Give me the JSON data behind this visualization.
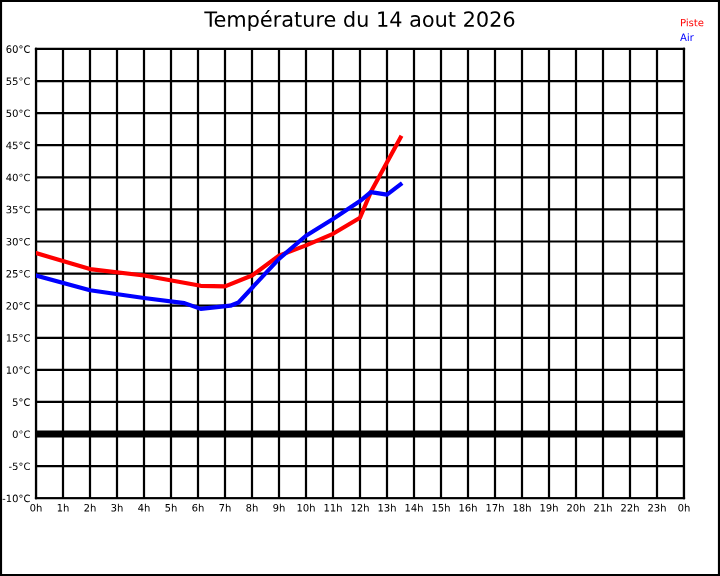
{
  "chart_data": {
    "type": "line",
    "title": "Température du 14 aout 2026",
    "legend": "top right",
    "grid": true,
    "marker": "none",
    "line_style": "solid",
    "xlim": [
      "2026-08-14T00:00",
      "2026-08-15T00:00"
    ],
    "ylim": [
      -10,
      60
    ],
    "xticks": [
      {
        "value": "2026-08-14T00:00",
        "label": "0h"
      },
      {
        "value": "2026-08-14T01:00",
        "label": "1h"
      },
      {
        "value": "2026-08-14T02:00",
        "label": "2h"
      },
      {
        "value": "2026-08-14T03:00",
        "label": "3h"
      },
      {
        "value": "2026-08-14T04:00",
        "label": "4h"
      },
      {
        "value": "2026-08-14T05:00",
        "label": "5h"
      },
      {
        "value": "2026-08-14T06:00",
        "label": "6h"
      },
      {
        "value": "2026-08-14T07:00",
        "label": "7h"
      },
      {
        "value": "2026-08-14T08:00",
        "label": "8h"
      },
      {
        "value": "2026-08-14T09:00",
        "label": "9h"
      },
      {
        "value": "2026-08-14T10:00",
        "label": "10h"
      },
      {
        "value": "2026-08-14T11:00",
        "label": "11h"
      },
      {
        "value": "2026-08-14T12:00",
        "label": "12h"
      },
      {
        "value": "2026-08-14T13:00",
        "label": "13h"
      },
      {
        "value": "2026-08-14T14:00",
        "label": "14h"
      },
      {
        "value": "2026-08-14T15:00",
        "label": "15h"
      },
      {
        "value": "2026-08-14T16:00",
        "label": "16h"
      },
      {
        "value": "2026-08-14T17:00",
        "label": "17h"
      },
      {
        "value": "2026-08-14T18:00",
        "label": "18h"
      },
      {
        "value": "2026-08-14T19:00",
        "label": "19h"
      },
      {
        "value": "2026-08-14T20:00",
        "label": "20h"
      },
      {
        "value": "2026-08-14T21:00",
        "label": "21h"
      },
      {
        "value": "2026-08-14T22:00",
        "label": "22h"
      },
      {
        "value": "2026-08-14T23:00",
        "label": "23h"
      },
      {
        "value": "2026-08-15T00:00",
        "label": "0h"
      }
    ],
    "yticks": [
      {
        "value": -10,
        "label": "-10°C"
      },
      {
        "value": -5,
        "label": "-5°C"
      },
      {
        "value": 0,
        "label": "0°C"
      },
      {
        "value": 5,
        "label": "5°C"
      },
      {
        "value": 10,
        "label": "10°C"
      },
      {
        "value": 15,
        "label": "15°C"
      },
      {
        "value": 20,
        "label": "20°C"
      },
      {
        "value": 25,
        "label": "25°C"
      },
      {
        "value": 30,
        "label": "30°C"
      },
      {
        "value": 35,
        "label": "35°C"
      },
      {
        "value": 40,
        "label": "40°C"
      },
      {
        "value": 45,
        "label": "45°C"
      },
      {
        "value": 50,
        "label": "50°C"
      },
      {
        "value": 55,
        "label": "55°C"
      },
      {
        "value": 60,
        "label": "60°C"
      }
    ],
    "ref_lines": [
      {
        "axis": "y",
        "value": 0,
        "label": null,
        "color": "#000000"
      }
    ],
    "series": [
      {
        "name": "Piste",
        "color": "#ff0000",
        "x": [
          "2026-08-14T00:00",
          "2026-08-14T02:00",
          "2026-08-14T04:00",
          "2026-08-14T06:06",
          "2026-08-14T07:00",
          "2026-08-14T08:00",
          "2026-08-14T09:00",
          "2026-08-14T10:00",
          "2026-08-14T11:00",
          "2026-08-14T12:00",
          "2026-08-14T12:24",
          "2026-08-14T13:30"
        ],
        "values": [
          28.2,
          25.7,
          24.7,
          23.1,
          23.0,
          24.7,
          27.8,
          29.4,
          31.2,
          33.7,
          37.7,
          46.2
        ]
      },
      {
        "name": "Air",
        "color": "#0000ff",
        "x": [
          "2026-08-14T00:00",
          "2026-08-14T02:00",
          "2026-08-14T04:00",
          "2026-08-14T05:30",
          "2026-08-14T06:06",
          "2026-08-14T07:12",
          "2026-08-14T07:30",
          "2026-08-14T09:00",
          "2026-08-14T10:00",
          "2026-08-14T11:00",
          "2026-08-14T12:00",
          "2026-08-14T12:24",
          "2026-08-14T13:00",
          "2026-08-14T13:30"
        ],
        "values": [
          24.7,
          22.4,
          21.2,
          20.4,
          19.5,
          20.0,
          20.5,
          27.3,
          30.9,
          33.5,
          36.3,
          37.7,
          37.3,
          38.9
        ]
      }
    ]
  }
}
